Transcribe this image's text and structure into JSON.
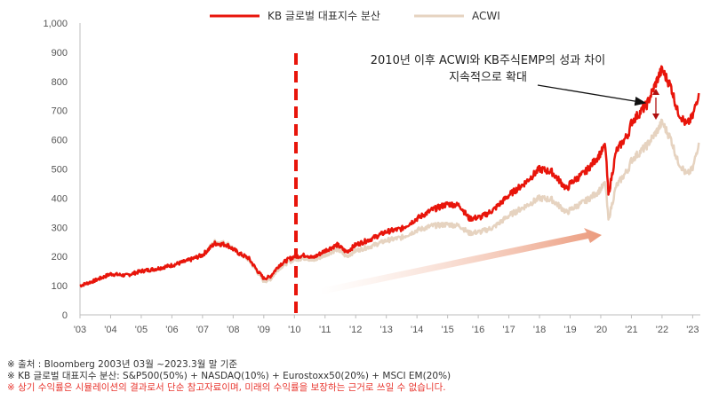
{
  "chart_data": {
    "type": "line",
    "legend": {
      "placement": "top-center",
      "entries": [
        "KB 글로벌 대표지수 분산",
        "ACWI"
      ]
    },
    "ylim": [
      0,
      1000
    ],
    "yticks": [
      "0",
      "100",
      "200",
      "300",
      "400",
      "500",
      "600",
      "700",
      "800",
      "900",
      "1,000"
    ],
    "xlim": [
      2003.0,
      2023.25
    ],
    "xticks": [
      "'03",
      "'04",
      "'05",
      "'06",
      "'07",
      "'08",
      "'09",
      "'10",
      "'11",
      "'12",
      "'13",
      "'14",
      "'15",
      "'16",
      "'17",
      "'18",
      "'19",
      "'20",
      "'21",
      "'22",
      "'23"
    ],
    "grid": false,
    "series": [
      {
        "name": "KB 글로벌 대표지수 분산",
        "color": "#e8150b",
        "x": [
          2003.0,
          2003.5,
          2004.0,
          2004.5,
          2005.0,
          2005.5,
          2006.0,
          2006.5,
          2007.0,
          2007.4,
          2007.8,
          2008.2,
          2008.5,
          2008.8,
          2009.0,
          2009.2,
          2009.5,
          2009.8,
          2010.0,
          2010.4,
          2010.6,
          2011.0,
          2011.4,
          2011.7,
          2012.0,
          2012.5,
          2013.0,
          2013.5,
          2014.0,
          2014.5,
          2015.0,
          2015.4,
          2015.7,
          2016.1,
          2016.5,
          2017.0,
          2017.5,
          2018.0,
          2018.4,
          2018.9,
          2019.0,
          2019.5,
          2019.9,
          2020.15,
          2020.25,
          2020.5,
          2020.9,
          2021.0,
          2021.5,
          2021.9,
          2022.0,
          2022.3,
          2022.5,
          2022.8,
          2023.0,
          2023.2
        ],
        "y": [
          100,
          118,
          140,
          135,
          150,
          158,
          170,
          185,
          205,
          245,
          240,
          210,
          195,
          150,
          125,
          130,
          170,
          190,
          200,
          205,
          195,
          220,
          240,
          215,
          240,
          260,
          285,
          295,
          330,
          360,
          380,
          375,
          330,
          335,
          360,
          410,
          450,
          500,
          490,
          430,
          450,
          490,
          540,
          580,
          410,
          560,
          620,
          660,
          720,
          820,
          840,
          780,
          700,
          650,
          680,
          760
        ]
      },
      {
        "name": "ACWI",
        "color": "#e6d3c0",
        "x": [
          2003.0,
          2003.5,
          2004.0,
          2004.5,
          2005.0,
          2005.5,
          2006.0,
          2006.5,
          2007.0,
          2007.4,
          2007.8,
          2008.2,
          2008.5,
          2008.8,
          2009.0,
          2009.2,
          2009.5,
          2009.8,
          2010.0,
          2010.4,
          2010.6,
          2011.0,
          2011.4,
          2011.7,
          2012.0,
          2012.5,
          2013.0,
          2013.5,
          2014.0,
          2014.5,
          2015.0,
          2015.4,
          2015.7,
          2016.1,
          2016.5,
          2017.0,
          2017.5,
          2018.0,
          2018.4,
          2018.9,
          2019.0,
          2019.5,
          2019.9,
          2020.15,
          2020.25,
          2020.5,
          2020.9,
          2021.0,
          2021.5,
          2021.9,
          2022.0,
          2022.3,
          2022.5,
          2022.8,
          2023.0,
          2023.2
        ],
        "y": [
          100,
          118,
          140,
          135,
          150,
          158,
          170,
          185,
          205,
          250,
          245,
          210,
          190,
          145,
          115,
          120,
          160,
          180,
          190,
          195,
          185,
          205,
          225,
          200,
          220,
          235,
          255,
          265,
          290,
          305,
          310,
          305,
          280,
          285,
          300,
          340,
          370,
          400,
          395,
          350,
          360,
          390,
          420,
          450,
          325,
          440,
          500,
          530,
          580,
          640,
          660,
          600,
          530,
          480,
          500,
          590
        ]
      }
    ],
    "annotations": [
      {
        "text_line1": "2010년 이후 ACWI와 KB주식EMP의 성과 차이",
        "text_line2": "지속적으로 확대"
      }
    ]
  },
  "footer": {
    "source": "※ 출처 : Bloomberg 2003년 03월 ~2023.3월 말 기준",
    "composition": "※ KB 글로벌 대표지수 분산: S&P500(50%) + NASDAQ(10%) + Eurostoxx50(20%) + MSCI EM(20%)",
    "disclaimer": "※ 상기 수익률은 시뮬레이션의 결과로서 단순 참고자료이며, 미래의 수익률을 보장하는 근거로 쓰일 수 없습니다."
  }
}
